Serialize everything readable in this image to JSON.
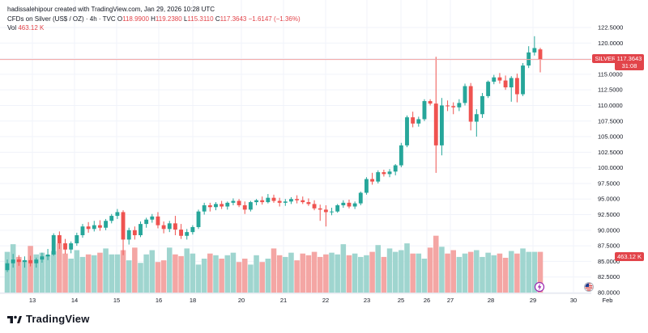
{
  "header": {
    "credit": "hadissalehipour created with TradingView.com, Jan 29, 2026 10:28 UTC",
    "instrument": "CFDs on Silver (US$ / OZ) · 4h · TVC",
    "open_label": "O",
    "open": "118.9900",
    "high_label": "H",
    "high": "119.2380",
    "low_label": "L",
    "low": "115.3110",
    "close_label": "C",
    "close": "117.3643",
    "change": "−1.6147 (−1.36%)",
    "vol_label": "Vol",
    "vol_value": "463.12 K"
  },
  "price_tag": {
    "symbol": "SILVER",
    "price": "117.3643",
    "countdown": "31:08"
  },
  "volume_tag": {
    "value": "463.12 K"
  },
  "brand": {
    "name": "TradingView"
  },
  "colors": {
    "up": "#26a69a",
    "down": "#ef5350",
    "vol_up": "#9fd5cf",
    "vol_down": "#f4a6a4",
    "price_line": "#f2a1a1"
  },
  "chart_data": {
    "type": "candlestick",
    "symbol": "SILVER",
    "timeframe": "4h",
    "y_axis": {
      "ticks": [
        "122.5000",
        "120.0000",
        "117.5000",
        "115.0000",
        "112.5000",
        "110.0000",
        "107.5000",
        "105.0000",
        "102.5000",
        "100.0000",
        "97.5000",
        "95.0000",
        "92.5000",
        "90.0000",
        "87.5000",
        "85.0000",
        "82.5000",
        "80.0000"
      ],
      "ylim": [
        80,
        122.5
      ]
    },
    "x_axis": {
      "ticks": [
        "13",
        "14",
        "15",
        "16",
        "18",
        "20",
        "21",
        "22",
        "23",
        "25",
        "26",
        "27",
        "28",
        "29",
        "30",
        "Feb"
      ]
    },
    "last_price": 117.3643,
    "candles": [
      [
        83.6,
        85.3,
        83.3,
        84.7
      ],
      [
        84.7,
        86.2,
        84.0,
        85.3
      ],
      [
        85.3,
        86.0,
        84.3,
        84.9
      ],
      [
        84.9,
        85.8,
        84.0,
        85.2
      ],
      [
        85.2,
        85.9,
        84.2,
        84.7
      ],
      [
        84.7,
        85.6,
        84.0,
        85.3
      ],
      [
        85.3,
        86.4,
        84.8,
        85.8
      ],
      [
        85.8,
        87.0,
        85.2,
        86.1
      ],
      [
        86.1,
        89.5,
        85.9,
        89.2
      ],
      [
        89.2,
        89.8,
        87.0,
        87.9
      ],
      [
        87.9,
        88.6,
        86.2,
        86.9
      ],
      [
        86.9,
        88.2,
        86.3,
        87.9
      ],
      [
        87.9,
        89.6,
        87.5,
        89.2
      ],
      [
        89.2,
        91.0,
        88.8,
        90.6
      ],
      [
        90.6,
        91.3,
        89.6,
        90.2
      ],
      [
        90.2,
        91.5,
        89.8,
        90.8
      ],
      [
        90.8,
        91.6,
        89.9,
        90.4
      ],
      [
        90.4,
        91.8,
        90.0,
        91.5
      ],
      [
        91.5,
        92.6,
        91.1,
        92.3
      ],
      [
        92.3,
        93.4,
        91.8,
        92.9
      ],
      [
        92.9,
        93.2,
        86.0,
        88.5
      ],
      [
        88.5,
        90.4,
        87.7,
        90.0
      ],
      [
        90.0,
        90.6,
        88.5,
        89.2
      ],
      [
        89.2,
        91.4,
        88.9,
        91.0
      ],
      [
        91.0,
        92.0,
        90.4,
        91.7
      ],
      [
        91.7,
        92.6,
        91.2,
        92.2
      ],
      [
        92.2,
        92.9,
        90.3,
        90.8
      ],
      [
        90.8,
        91.4,
        89.5,
        90.2
      ],
      [
        90.2,
        91.5,
        89.7,
        91.1
      ],
      [
        91.1,
        92.3,
        89.2,
        90.1
      ],
      [
        90.1,
        91.0,
        88.6,
        89.1
      ],
      [
        89.1,
        90.2,
        88.5,
        89.7
      ],
      [
        89.7,
        90.8,
        89.3,
        90.5
      ],
      [
        90.5,
        93.3,
        90.2,
        93.0
      ],
      [
        93.0,
        94.4,
        92.5,
        94.0
      ],
      [
        94.0,
        94.4,
        93.0,
        93.7
      ],
      [
        93.7,
        94.5,
        93.2,
        94.2
      ],
      [
        94.2,
        94.7,
        93.4,
        93.8
      ],
      [
        93.8,
        94.6,
        93.3,
        94.4
      ],
      [
        94.4,
        95.1,
        94.0,
        94.7
      ],
      [
        94.7,
        95.0,
        93.7,
        94.0
      ],
      [
        94.0,
        94.6,
        92.6,
        93.3
      ],
      [
        93.3,
        94.7,
        93.0,
        94.5
      ],
      [
        94.5,
        95.0,
        94.0,
        94.8
      ],
      [
        94.8,
        95.4,
        94.1,
        94.5
      ],
      [
        94.5,
        95.8,
        94.3,
        95.2
      ],
      [
        95.2,
        95.7,
        94.4,
        94.7
      ],
      [
        94.7,
        95.2,
        93.8,
        94.4
      ],
      [
        94.4,
        95.0,
        93.9,
        94.6
      ],
      [
        94.6,
        95.3,
        94.2,
        95.0
      ],
      [
        95.0,
        95.6,
        94.3,
        94.8
      ],
      [
        94.8,
        95.4,
        94.2,
        94.5
      ],
      [
        94.5,
        95.1,
        93.9,
        94.2
      ],
      [
        94.2,
        94.8,
        93.2,
        93.5
      ],
      [
        93.5,
        94.1,
        91.5,
        93.3
      ],
      [
        93.3,
        94.0,
        90.6,
        92.9
      ],
      [
        92.9,
        93.6,
        92.4,
        93.0
      ],
      [
        93.0,
        94.2,
        92.8,
        94.0
      ],
      [
        94.0,
        94.8,
        93.6,
        94.4
      ],
      [
        94.4,
        94.9,
        93.5,
        93.8
      ],
      [
        93.8,
        94.6,
        93.4,
        94.3
      ],
      [
        94.3,
        96.2,
        94.0,
        96.0
      ],
      [
        96.0,
        98.5,
        95.7,
        98.2
      ],
      [
        98.2,
        99.2,
        97.3,
        97.8
      ],
      [
        97.8,
        99.6,
        97.5,
        99.3
      ],
      [
        99.3,
        99.7,
        98.6,
        99.0
      ],
      [
        99.0,
        99.8,
        98.5,
        99.4
      ],
      [
        99.4,
        100.6,
        98.8,
        100.4
      ],
      [
        100.4,
        104.0,
        100.1,
        103.6
      ],
      [
        103.6,
        108.4,
        103.3,
        108.1
      ],
      [
        108.1,
        109.0,
        106.5,
        107.1
      ],
      [
        107.1,
        108.2,
        106.6,
        107.8
      ],
      [
        107.8,
        111.0,
        107.5,
        110.7
      ],
      [
        110.7,
        111.0,
        110.0,
        110.3
      ],
      [
        110.3,
        117.8,
        99.2,
        103.6
      ],
      [
        103.6,
        111.2,
        102.0,
        110.0
      ],
      [
        110.0,
        110.8,
        109.1,
        109.9
      ],
      [
        109.9,
        110.5,
        108.6,
        109.7
      ],
      [
        109.7,
        111.0,
        109.1,
        110.4
      ],
      [
        110.4,
        113.5,
        110.0,
        113.1
      ],
      [
        113.1,
        113.6,
        106.0,
        107.4
      ],
      [
        107.4,
        109.4,
        105.0,
        108.6
      ],
      [
        108.6,
        112.0,
        108.0,
        111.5
      ],
      [
        111.5,
        114.0,
        111.2,
        113.8
      ],
      [
        113.8,
        114.9,
        113.4,
        114.5
      ],
      [
        114.5,
        115.2,
        113.5,
        114.0
      ],
      [
        114.0,
        114.8,
        112.5,
        112.9
      ],
      [
        112.9,
        114.7,
        110.6,
        114.4
      ],
      [
        114.4,
        115.1,
        110.5,
        111.8
      ],
      [
        111.8,
        116.8,
        111.5,
        116.4
      ],
      [
        116.4,
        119.5,
        116.0,
        118.5
      ],
      [
        118.5,
        121.1,
        118.0,
        119.2
      ],
      [
        118.99,
        119.238,
        115.311,
        117.3643
      ]
    ],
    "volume_axis_max": 100,
    "volume": [
      48,
      57,
      42,
      38,
      55,
      45,
      47,
      44,
      49,
      58,
      46,
      40,
      50,
      42,
      45,
      44,
      47,
      52,
      45,
      45,
      50,
      38,
      53,
      35,
      45,
      50,
      36,
      38,
      53,
      45,
      43,
      52,
      46,
      33,
      40,
      46,
      44,
      40,
      44,
      47,
      36,
      40,
      33,
      44,
      36,
      40,
      52,
      44,
      42,
      47,
      38,
      46,
      44,
      48,
      42,
      45,
      47,
      45,
      57,
      44,
      46,
      42,
      44,
      48,
      56,
      42,
      52,
      48,
      50,
      58,
      46,
      46,
      40,
      53,
      67,
      54,
      46,
      50,
      42,
      46,
      48,
      50,
      42,
      47,
      44,
      46,
      41,
      49,
      46,
      52,
      48,
      48,
      48
    ]
  }
}
